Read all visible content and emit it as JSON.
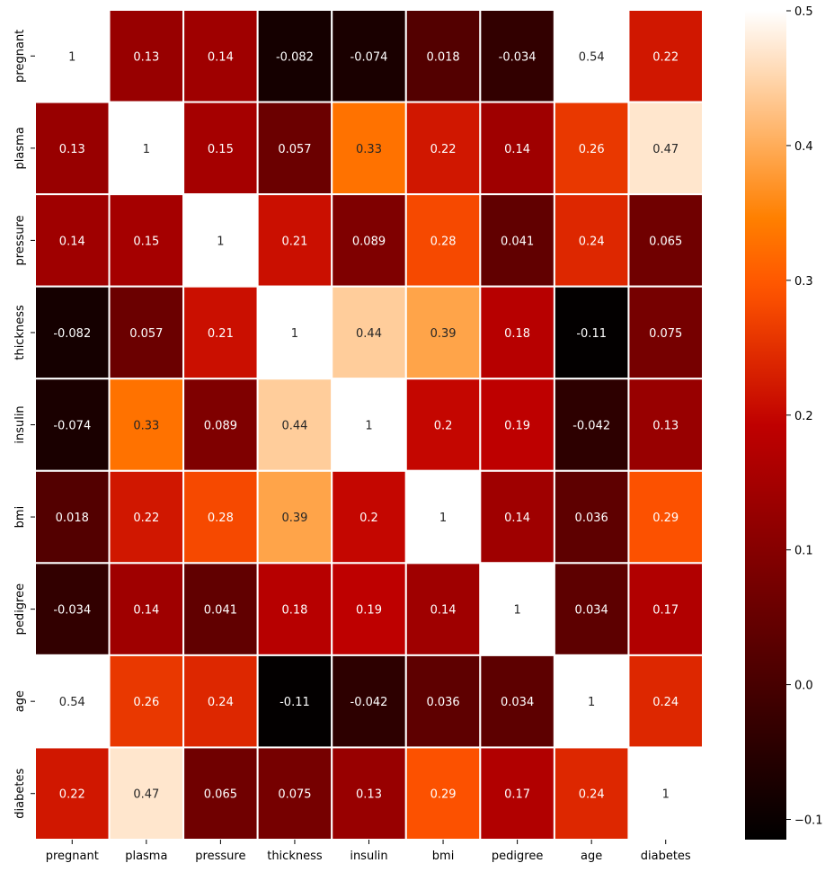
{
  "chart_data": {
    "type": "heatmap",
    "title": "",
    "xlabel": "",
    "ylabel": "",
    "rows": [
      "pregnant",
      "plasma",
      "pressure",
      "thickness",
      "insulin",
      "bmi",
      "pedigree",
      "age",
      "diabetes"
    ],
    "columns": [
      "pregnant",
      "plasma",
      "pressure",
      "thickness",
      "insulin",
      "bmi",
      "pedigree",
      "age",
      "diabetes"
    ],
    "values": [
      [
        1,
        0.13,
        0.14,
        -0.082,
        -0.074,
        0.018,
        -0.034,
        0.54,
        0.22
      ],
      [
        0.13,
        1,
        0.15,
        0.057,
        0.33,
        0.22,
        0.14,
        0.26,
        0.47
      ],
      [
        0.14,
        0.15,
        1,
        0.21,
        0.089,
        0.28,
        0.041,
        0.24,
        0.065
      ],
      [
        -0.082,
        0.057,
        0.21,
        1,
        0.44,
        0.39,
        0.18,
        -0.11,
        0.075
      ],
      [
        -0.074,
        0.33,
        0.089,
        0.44,
        1,
        0.2,
        0.19,
        -0.042,
        0.13
      ],
      [
        0.018,
        0.22,
        0.28,
        0.39,
        0.2,
        1,
        0.14,
        0.036,
        0.29
      ],
      [
        -0.034,
        0.14,
        0.041,
        0.18,
        0.19,
        0.14,
        1,
        0.034,
        0.17
      ],
      [
        0.54,
        0.26,
        0.24,
        -0.11,
        -0.042,
        0.036,
        0.034,
        1,
        0.24
      ],
      [
        0.22,
        0.47,
        0.065,
        0.075,
        0.13,
        0.29,
        0.17,
        0.24,
        1
      ]
    ],
    "annotations": [
      [
        "1",
        "0.13",
        "0.14",
        "-0.082",
        "-0.074",
        "0.018",
        "-0.034",
        "0.54",
        "0.22"
      ],
      [
        "0.13",
        "1",
        "0.15",
        "0.057",
        "0.33",
        "0.22",
        "0.14",
        "0.26",
        "0.47"
      ],
      [
        "0.14",
        "0.15",
        "1",
        "0.21",
        "0.089",
        "0.28",
        "0.041",
        "0.24",
        "0.065"
      ],
      [
        "-0.082",
        "0.057",
        "0.21",
        "1",
        "0.44",
        "0.39",
        "0.18",
        "-0.11",
        "0.075"
      ],
      [
        "-0.074",
        "0.33",
        "0.089",
        "0.44",
        "1",
        "0.2",
        "0.19",
        "-0.042",
        "0.13"
      ],
      [
        "0.018",
        "0.22",
        "0.28",
        "0.39",
        "0.2",
        "1",
        "0.14",
        "0.036",
        "0.29"
      ],
      [
        "-0.034",
        "0.14",
        "0.041",
        "0.18",
        "0.19",
        "0.14",
        "1",
        "0.034",
        "0.17"
      ],
      [
        "0.54",
        "0.26",
        "0.24",
        "-0.11",
        "-0.042",
        "0.036",
        "0.034",
        "1",
        "0.24"
      ],
      [
        "0.22",
        "0.47",
        "0.065",
        "0.075",
        "0.13",
        "0.29",
        "0.17",
        "0.24",
        "1"
      ]
    ],
    "color_range": [
      -0.115,
      0.5
    ],
    "colormap": "gist_heat",
    "colorbar_ticks": [
      {
        "value": 0.5,
        "label": "0.5"
      },
      {
        "value": 0.4,
        "label": "0.4"
      },
      {
        "value": 0.3,
        "label": "0.3"
      },
      {
        "value": 0.2,
        "label": "0.2"
      },
      {
        "value": 0.1,
        "label": "0.1"
      },
      {
        "value": 0.0,
        "label": "0.0"
      },
      {
        "value": -0.1,
        "label": "−0.1"
      }
    ],
    "colorbar_position": "right",
    "grid": true,
    "cell_border_color": "#ffffff"
  }
}
